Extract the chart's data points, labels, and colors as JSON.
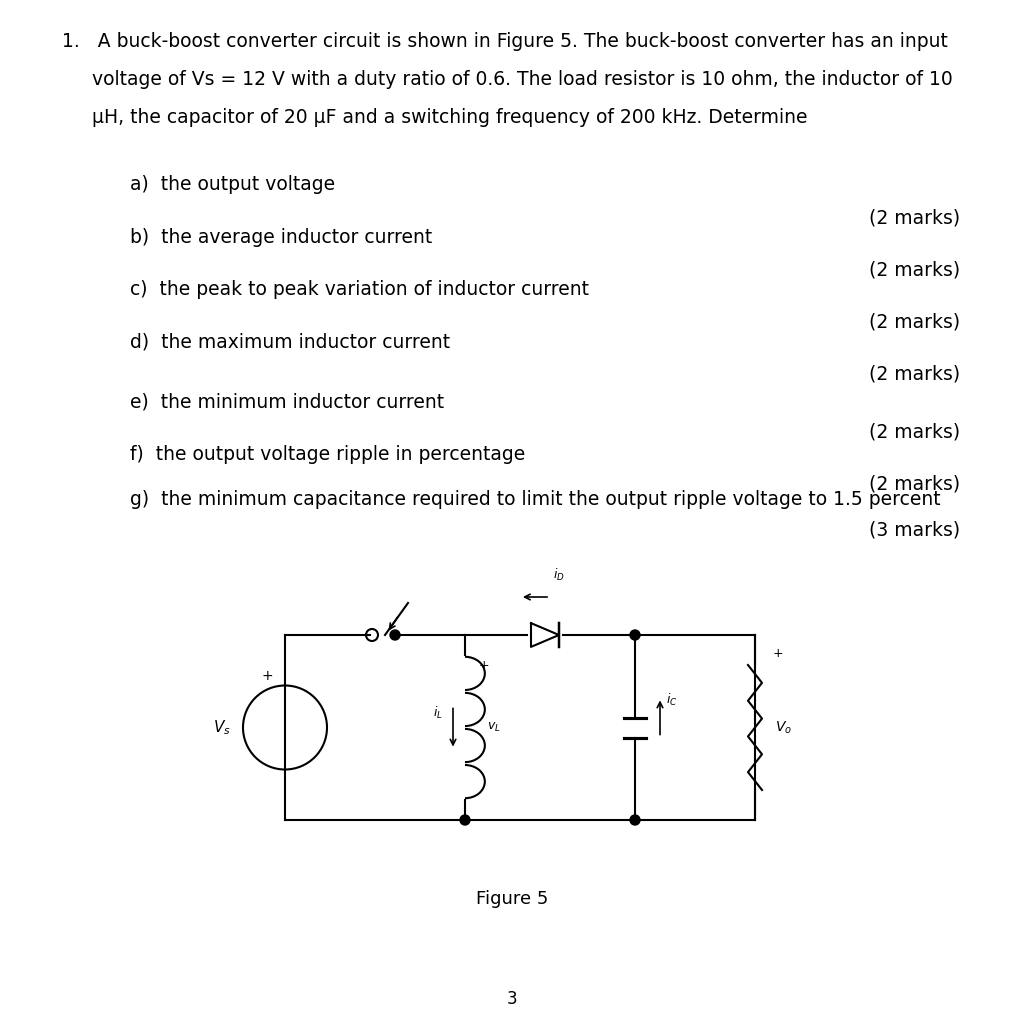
{
  "bg_color": "#ffffff",
  "questions": [
    {
      "label": "a)  the output voltage",
      "marks": "(2 marks)"
    },
    {
      "label": "b)  the average inductor current",
      "marks": "(2 marks)"
    },
    {
      "label": "c)  the peak to peak variation of inductor current",
      "marks": "(2 marks)"
    },
    {
      "label": "d)  the maximum inductor current",
      "marks": "(2 marks)"
    },
    {
      "label": "e)  the minimum inductor current",
      "marks": "(2 marks)"
    },
    {
      "label": "f)  the output voltage ripple in percentage",
      "marks": "(2 marks)"
    },
    {
      "label": "g)  the minimum capacitance required to limit the output ripple voltage to 1.5 percent",
      "marks": "(3 marks)"
    }
  ],
  "figure_caption": "Figure 5",
  "page_number": "3",
  "title_line1": "1.   A buck-boost converter circuit is shown in Figure 5. The buck-boost converter has an input",
  "title_line2": "     voltage of Vs = 12 V with a duty ratio of 0.6. The load resistor is 10 ohm, the inductor of 10",
  "title_line3": "     μH, the capacitor of 20 μF and a switching frequency of 200 kHz. Determine"
}
